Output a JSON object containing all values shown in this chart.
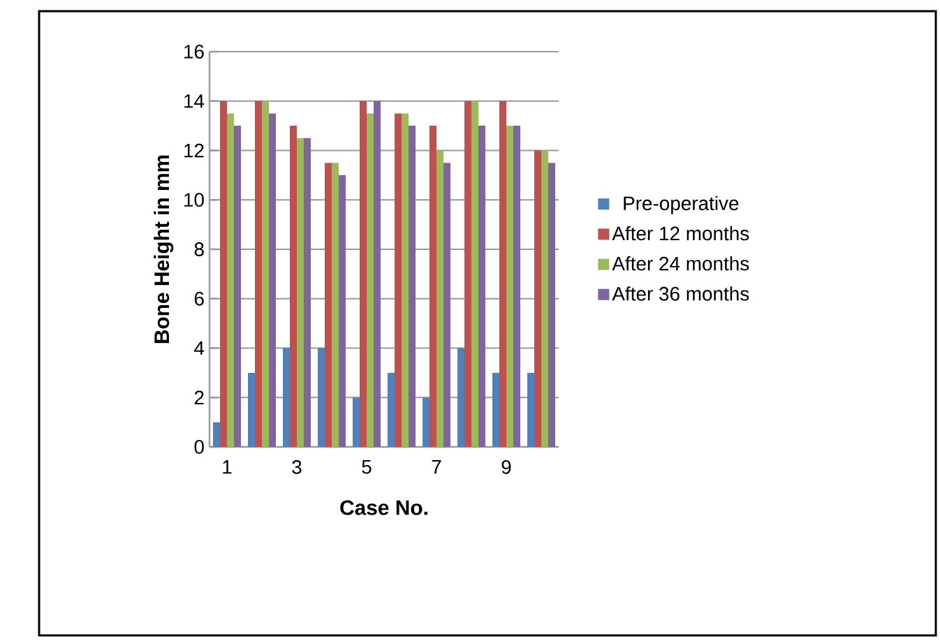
{
  "chart_data": {
    "type": "bar",
    "xlabel": "Case No.",
    "ylabel": "Bone Height in mm",
    "categories": [
      "1",
      null,
      "3",
      null,
      "5",
      null,
      "7",
      null,
      "9",
      null
    ],
    "series": [
      {
        "name": "Pre-operative",
        "color": "#4f81bd",
        "values": [
          1,
          3,
          4,
          4,
          2,
          3,
          2,
          4,
          3,
          3
        ]
      },
      {
        "name": "After 12 months",
        "color": "#c0504d",
        "values": [
          14,
          14,
          13,
          11.5,
          14,
          13.5,
          13,
          14,
          14,
          12
        ]
      },
      {
        "name": "After 24 months",
        "color": "#9bbb59",
        "values": [
          13.5,
          14,
          12.5,
          11.5,
          13.5,
          13.5,
          12,
          14,
          13,
          12
        ]
      },
      {
        "name": "After 36 months",
        "color": "#8064a2",
        "values": [
          13,
          13.5,
          12.5,
          11,
          14,
          13,
          11.5,
          13,
          13,
          11.5
        ]
      }
    ],
    "ylim": [
      0,
      16
    ],
    "yticks": [
      0,
      2,
      4,
      6,
      8,
      10,
      12,
      14,
      16
    ],
    "grid": "y",
    "legend": "right"
  }
}
